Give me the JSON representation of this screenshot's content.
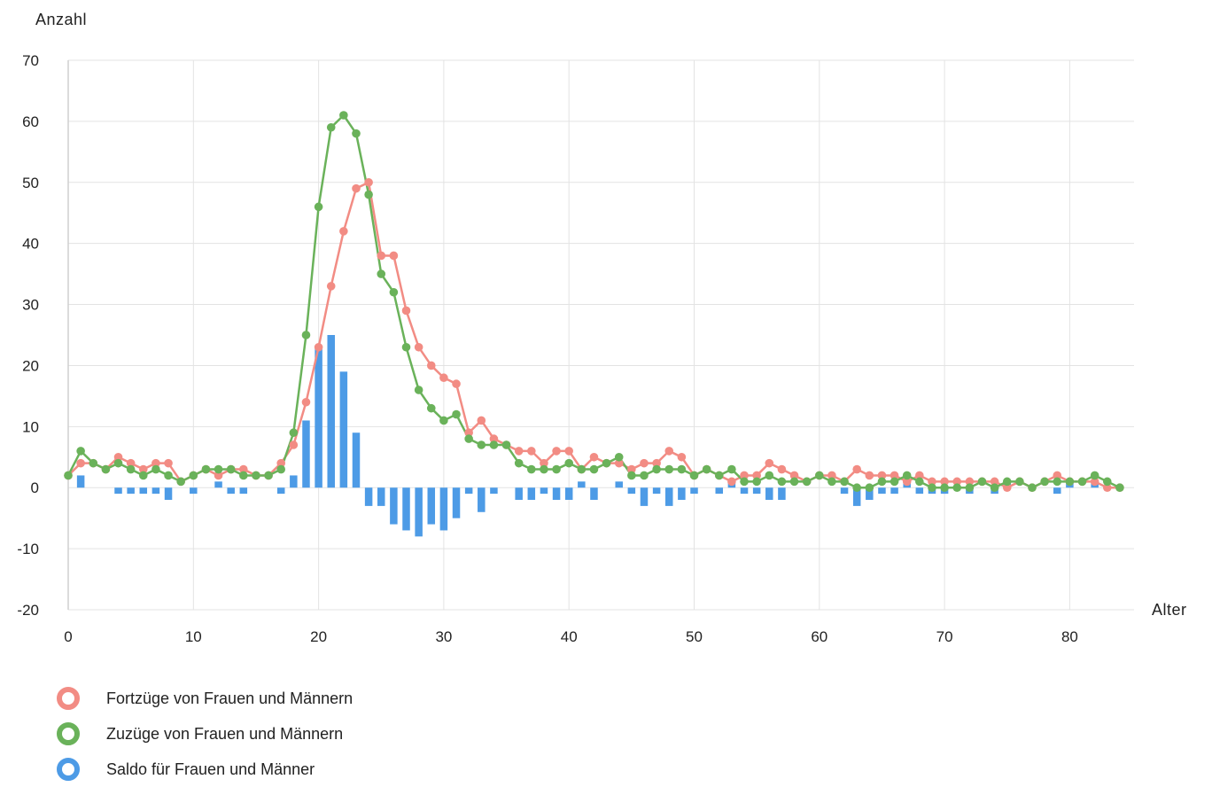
{
  "chart_data": {
    "type": "line",
    "ylabel": "Anzahl",
    "xlabel": "Alter",
    "xlim": [
      0,
      85
    ],
    "ylim": [
      -20,
      70
    ],
    "x_ticks": [
      "0",
      "10",
      "20",
      "30",
      "40",
      "50",
      "60",
      "70",
      "80"
    ],
    "y_ticks": [
      "70",
      "60",
      "50",
      "40",
      "30",
      "20",
      "10",
      "0",
      "-10",
      "-20"
    ],
    "grid": true,
    "legend_position": "bottom-left",
    "x": [
      0,
      1,
      2,
      3,
      4,
      5,
      6,
      7,
      8,
      9,
      10,
      11,
      12,
      13,
      14,
      15,
      16,
      17,
      18,
      19,
      20,
      21,
      22,
      23,
      24,
      25,
      26,
      27,
      28,
      29,
      30,
      31,
      32,
      33,
      34,
      35,
      36,
      37,
      38,
      39,
      40,
      41,
      42,
      43,
      44,
      45,
      46,
      47,
      48,
      49,
      50,
      51,
      52,
      53,
      54,
      55,
      56,
      57,
      58,
      59,
      60,
      61,
      62,
      63,
      64,
      65,
      66,
      67,
      68,
      69,
      70,
      71,
      72,
      73,
      74,
      75,
      76,
      77,
      78,
      79,
      80,
      81,
      82,
      83,
      84
    ],
    "series": [
      {
        "name": "Fortzüge von Frauen und Männern",
        "type": "line",
        "color": "#f28c84",
        "values": [
          2,
          4,
          4,
          3,
          5,
          4,
          3,
          4,
          4,
          1,
          2,
          3,
          2,
          3,
          3,
          2,
          2,
          4,
          7,
          14,
          23,
          33,
          42,
          49,
          50,
          38,
          38,
          29,
          23,
          20,
          18,
          17,
          9,
          11,
          8,
          7,
          6,
          6,
          4,
          6,
          6,
          3,
          5,
          4,
          4,
          3,
          4,
          4,
          6,
          5,
          2,
          3,
          2,
          1,
          2,
          2,
          4,
          3,
          2,
          1,
          2,
          2,
          1,
          3,
          2,
          2,
          2,
          1,
          2,
          1,
          1,
          1,
          1,
          1,
          1,
          0,
          1,
          0,
          1,
          2,
          1,
          1,
          1,
          0,
          0
        ]
      },
      {
        "name": "Zuzüge von Frauen und Männern",
        "type": "line",
        "color": "#6ab25a",
        "values": [
          2,
          6,
          4,
          3,
          4,
          3,
          2,
          3,
          2,
          1,
          2,
          3,
          3,
          3,
          2,
          2,
          2,
          3,
          9,
          25,
          46,
          59,
          61,
          58,
          48,
          35,
          32,
          23,
          16,
          13,
          11,
          12,
          8,
          7,
          7,
          7,
          4,
          3,
          3,
          3,
          4,
          3,
          3,
          4,
          5,
          2,
          2,
          3,
          3,
          3,
          2,
          3,
          2,
          3,
          1,
          1,
          2,
          1,
          1,
          1,
          2,
          1,
          1,
          0,
          0,
          1,
          1,
          2,
          1,
          0,
          0,
          0,
          0,
          1,
          0,
          1,
          1,
          0,
          1,
          1,
          1,
          1,
          2,
          1,
          0
        ]
      },
      {
        "name": "Saldo für Frauen und Männer",
        "type": "bar",
        "color": "#4d9be6",
        "values": [
          0,
          2,
          0,
          0,
          -1,
          -1,
          -1,
          -1,
          -2,
          0,
          -1,
          0,
          1,
          -1,
          -1,
          0,
          0,
          -1,
          2,
          11,
          23,
          25,
          19,
          9,
          -3,
          -3,
          -6,
          -7,
          -8,
          -6,
          -7,
          -5,
          -1,
          -4,
          -1,
          0,
          -2,
          -2,
          -1,
          -2,
          -2,
          1,
          -2,
          0,
          1,
          -1,
          -3,
          -1,
          -3,
          -2,
          -1,
          0,
          -1,
          1,
          -1,
          -1,
          -2,
          -2,
          0,
          0,
          0,
          0,
          -1,
          -3,
          -2,
          -1,
          -1,
          1,
          -1,
          -1,
          -1,
          0,
          -1,
          0,
          -1,
          1,
          0,
          0,
          0,
          -1,
          1,
          0,
          1,
          0,
          0
        ]
      }
    ]
  }
}
